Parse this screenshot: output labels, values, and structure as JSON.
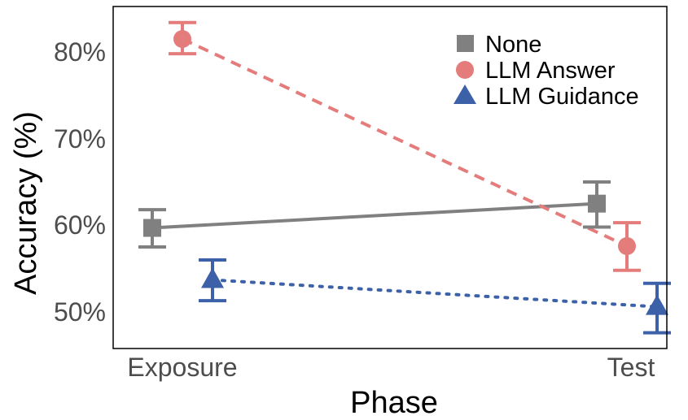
{
  "chart_data": {
    "type": "line",
    "xlabel": "Phase",
    "ylabel": "Accuracy (%)",
    "categories": [
      "Exposure",
      "Test"
    ],
    "ylim": [
      46,
      85.5
    ],
    "y_ticks": [
      50,
      60,
      70,
      80
    ],
    "y_tick_labels": [
      "50%",
      "60%",
      "70%",
      "80%"
    ],
    "grid": false,
    "legend_position": "top-right",
    "series": [
      {
        "name": "None",
        "color": "#808080",
        "marker": "square",
        "line_style": "solid",
        "values": [
          59.7,
          62.5
        ],
        "error_low": [
          57.5,
          59.8
        ],
        "error_high": [
          61.8,
          65.0
        ]
      },
      {
        "name": "LLM Answer",
        "color": "#E57C7C",
        "marker": "circle",
        "line_style": "dashed",
        "values": [
          81.5,
          57.6
        ],
        "error_low": [
          79.8,
          54.8
        ],
        "error_high": [
          83.4,
          60.3
        ]
      },
      {
        "name": "LLM Guidance",
        "color": "#3C61A8",
        "marker": "triangle",
        "line_style": "dotted",
        "values": [
          53.7,
          50.6
        ],
        "error_low": [
          51.3,
          47.6
        ],
        "error_high": [
          56.0,
          53.3
        ]
      }
    ]
  }
}
